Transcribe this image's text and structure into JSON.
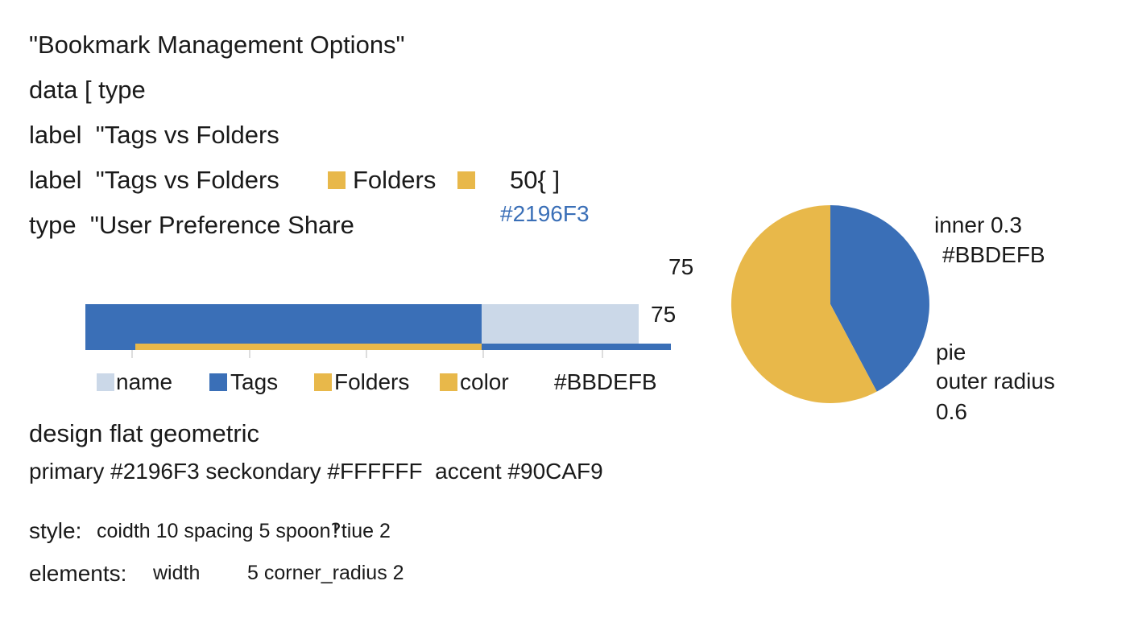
{
  "header": {
    "title": "\"Bookmark Management Options\""
  },
  "spec_lines": [
    "data [ type",
    "label  \"Tags vs Folders",
    "label  \"Tags vs Folders",
    "type  \"User Preference Share"
  ],
  "inline_legend": {
    "label": "Folders",
    "value": "50{ ]",
    "color_code": "#2196F3"
  },
  "bar_labels": [
    "75",
    "75"
  ],
  "legend": [
    "name",
    "Tags",
    "Folders",
    "color",
    "#BBDEFB"
  ],
  "pie_notes": [
    "inner 0.3",
    "#BBDEFB",
    "pie",
    "outer radius",
    "0.6"
  ],
  "design": {
    "heading": "design flat geometric",
    "palette": "primary #2196F3 seckondary #FFFFFF  accent #90CAF9"
  },
  "style": {
    "key": "style:",
    "text": "coidth 10 spacing 5 spoon‽tiue 2"
  },
  "elements": {
    "key": "elements:",
    "width": "width",
    "text": "5 corner_radius 2"
  }
}
